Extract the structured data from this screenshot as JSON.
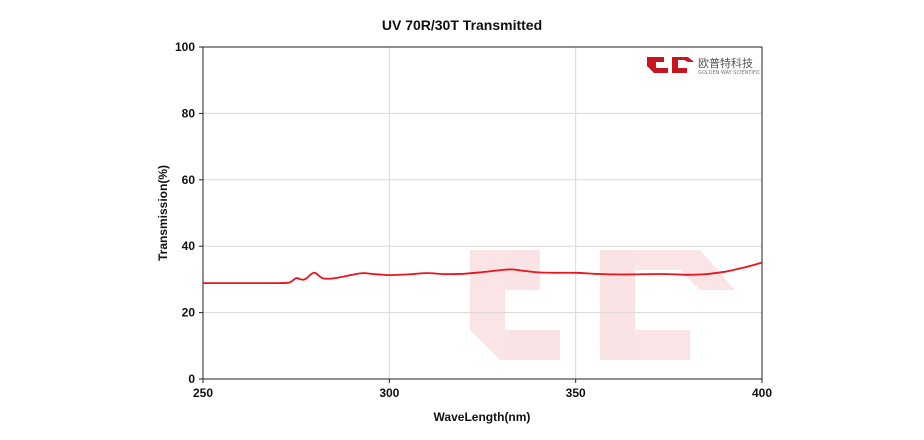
{
  "chart_data": {
    "type": "line",
    "title": "UV 70R/30T Transmitted",
    "xlabel": "WaveLength(nm)",
    "ylabel": "Transmission(%)",
    "xlim": [
      250,
      400
    ],
    "ylim": [
      0,
      100
    ],
    "xticks": [
      250,
      300,
      350,
      400
    ],
    "yticks": [
      0,
      20,
      40,
      60,
      80,
      100
    ],
    "grid": true,
    "series": [
      {
        "color": "#e8141e",
        "x": [
          250,
          255,
          260,
          265,
          270,
          273,
          274,
          275,
          276,
          277,
          278,
          279,
          280,
          281,
          282,
          283,
          285,
          288,
          290,
          293,
          296,
          300,
          305,
          310,
          315,
          320,
          325,
          330,
          333,
          336,
          340,
          345,
          350,
          355,
          360,
          365,
          370,
          375,
          380,
          385,
          390,
          393,
          396,
          398,
          400
        ],
        "y": [
          28.9,
          28.9,
          28.9,
          28.9,
          28.9,
          29.0,
          29.6,
          30.4,
          30.1,
          29.9,
          30.5,
          31.6,
          32.0,
          31.2,
          30.4,
          30.2,
          30.3,
          30.9,
          31.4,
          31.9,
          31.6,
          31.3,
          31.5,
          31.9,
          31.6,
          31.7,
          32.2,
          32.8,
          33.0,
          32.6,
          32.1,
          32.0,
          32.0,
          31.7,
          31.5,
          31.5,
          31.6,
          31.6,
          31.4,
          31.6,
          32.3,
          33.0,
          33.8,
          34.4,
          35.1
        ]
      }
    ]
  },
  "logo": {
    "brand_cn": "欧普特科技",
    "brand_en": "GOLDEN WAY SCIENTIFIC",
    "mark_color": "#c8141e"
  }
}
